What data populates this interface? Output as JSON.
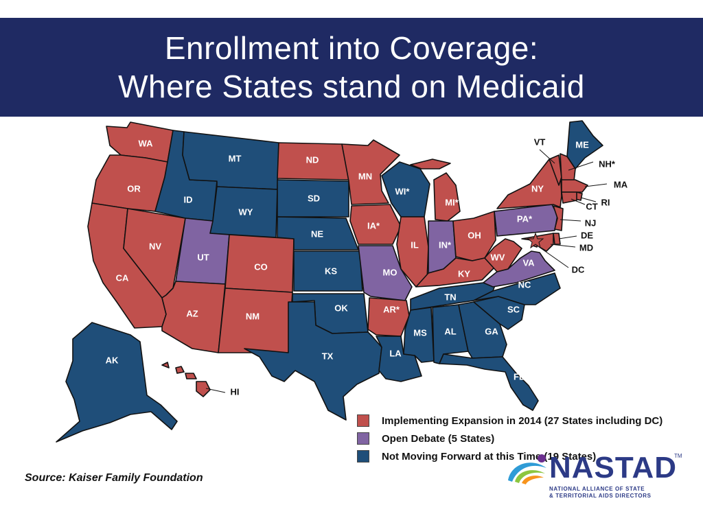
{
  "title": {
    "line1": "Enrollment into Coverage:",
    "line2": "Where States stand on Medicaid"
  },
  "colors": {
    "title_bg": "#1f2a63",
    "expansion": "#c0504d",
    "debate": "#8064a2",
    "not_moving": "#1f4e79",
    "state_border": "#111111",
    "label": "#ffffff"
  },
  "legend": [
    {
      "key": "expansion",
      "label": "Implementing Expansion in 2014 (27 States including DC)"
    },
    {
      "key": "debate",
      "label": "Open Debate (5 States)"
    },
    {
      "key": "not_moving",
      "label": "Not Moving Forward at this Time (19 States)"
    }
  ],
  "states": [
    {
      "abbr": "WA",
      "label": "WA",
      "status": "expansion"
    },
    {
      "abbr": "OR",
      "label": "OR",
      "status": "expansion"
    },
    {
      "abbr": "CA",
      "label": "CA",
      "status": "expansion"
    },
    {
      "abbr": "NV",
      "label": "NV",
      "status": "expansion"
    },
    {
      "abbr": "ID",
      "label": "ID",
      "status": "not_moving"
    },
    {
      "abbr": "MT",
      "label": "MT",
      "status": "not_moving"
    },
    {
      "abbr": "WY",
      "label": "WY",
      "status": "not_moving"
    },
    {
      "abbr": "UT",
      "label": "UT",
      "status": "debate"
    },
    {
      "abbr": "AZ",
      "label": "AZ",
      "status": "expansion"
    },
    {
      "abbr": "CO",
      "label": "CO",
      "status": "expansion"
    },
    {
      "abbr": "NM",
      "label": "NM",
      "status": "expansion"
    },
    {
      "abbr": "ND",
      "label": "ND",
      "status": "expansion"
    },
    {
      "abbr": "SD",
      "label": "SD",
      "status": "not_moving"
    },
    {
      "abbr": "NE",
      "label": "NE",
      "status": "not_moving"
    },
    {
      "abbr": "KS",
      "label": "KS",
      "status": "not_moving"
    },
    {
      "abbr": "OK",
      "label": "OK",
      "status": "not_moving"
    },
    {
      "abbr": "TX",
      "label": "TX",
      "status": "not_moving"
    },
    {
      "abbr": "MN",
      "label": "MN",
      "status": "expansion"
    },
    {
      "abbr": "IA",
      "label": "IA*",
      "status": "expansion"
    },
    {
      "abbr": "MO",
      "label": "MO",
      "status": "debate"
    },
    {
      "abbr": "AR",
      "label": "AR*",
      "status": "expansion"
    },
    {
      "abbr": "LA",
      "label": "LA",
      "status": "not_moving"
    },
    {
      "abbr": "WI",
      "label": "WI*",
      "status": "not_moving"
    },
    {
      "abbr": "IL",
      "label": "IL",
      "status": "expansion"
    },
    {
      "abbr": "MI",
      "label": "MI*",
      "status": "expansion"
    },
    {
      "abbr": "IN",
      "label": "IN*",
      "status": "debate"
    },
    {
      "abbr": "OH",
      "label": "OH",
      "status": "expansion"
    },
    {
      "abbr": "KY",
      "label": "KY",
      "status": "expansion"
    },
    {
      "abbr": "TN",
      "label": "TN",
      "status": "not_moving"
    },
    {
      "abbr": "MS",
      "label": "MS",
      "status": "not_moving"
    },
    {
      "abbr": "AL",
      "label": "AL",
      "status": "not_moving"
    },
    {
      "abbr": "GA",
      "label": "GA",
      "status": "not_moving"
    },
    {
      "abbr": "FL",
      "label": "FL",
      "status": "not_moving"
    },
    {
      "abbr": "SC",
      "label": "SC",
      "status": "not_moving"
    },
    {
      "abbr": "NC",
      "label": "NC",
      "status": "not_moving"
    },
    {
      "abbr": "VA",
      "label": "VA",
      "status": "debate"
    },
    {
      "abbr": "WV",
      "label": "WV",
      "status": "expansion"
    },
    {
      "abbr": "PA",
      "label": "PA*",
      "status": "debate"
    },
    {
      "abbr": "NY",
      "label": "NY",
      "status": "expansion"
    },
    {
      "abbr": "ME",
      "label": "ME",
      "status": "not_moving"
    },
    {
      "abbr": "VT",
      "label": "VT",
      "status": "expansion"
    },
    {
      "abbr": "NH",
      "label": "NH*",
      "status": "expansion"
    },
    {
      "abbr": "MA",
      "label": "MA",
      "status": "expansion"
    },
    {
      "abbr": "RI",
      "label": "RI",
      "status": "expansion"
    },
    {
      "abbr": "CT",
      "label": "CT",
      "status": "expansion"
    },
    {
      "abbr": "NJ",
      "label": "NJ",
      "status": "expansion"
    },
    {
      "abbr": "DE",
      "label": "DE",
      "status": "expansion"
    },
    {
      "abbr": "MD",
      "label": "MD",
      "status": "expansion"
    },
    {
      "abbr": "DC",
      "label": "DC",
      "status": "expansion"
    },
    {
      "abbr": "AK",
      "label": "AK",
      "status": "not_moving"
    },
    {
      "abbr": "HI",
      "label": "HI",
      "status": "expansion"
    }
  ],
  "source": "Source: Kaiser Family Foundation",
  "logo": {
    "name": "NASTAD",
    "tm": "TM",
    "line1": "NATIONAL ALLIANCE OF STATE",
    "line2": "& TERRITORIAL AIDS DIRECTORS"
  }
}
